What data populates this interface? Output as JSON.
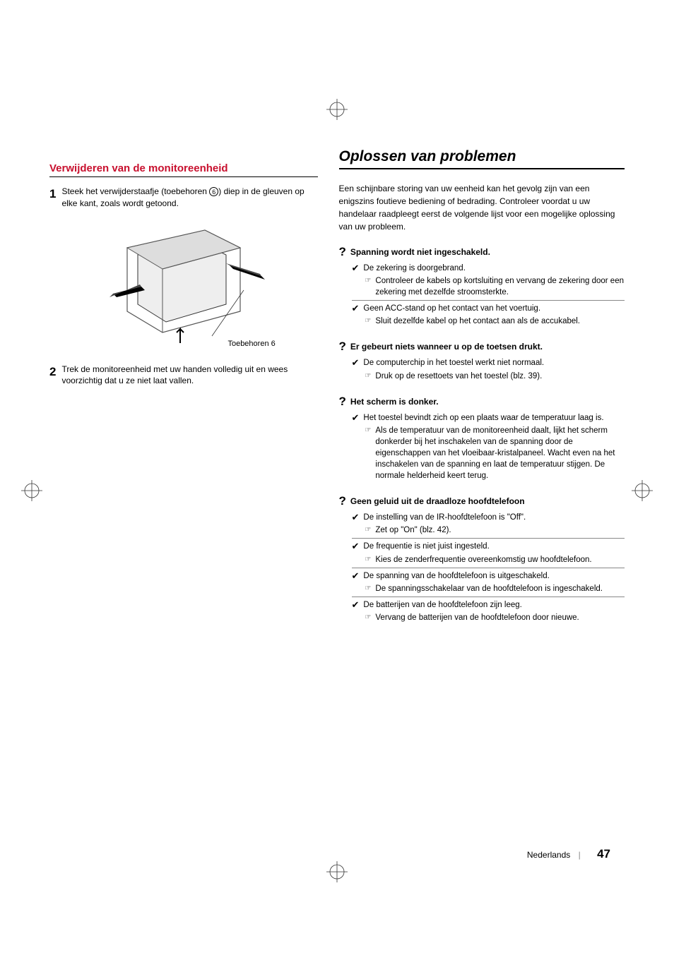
{
  "leftColumn": {
    "heading": "Verwijderen van de monitoreenheid",
    "steps": [
      {
        "num": "1",
        "text_before": "Steek het verwijderstaafje (toebehoren ",
        "circled": "6",
        "text_after": ") diep in de gleuven op elke kant, zoals wordt getoond."
      },
      {
        "num": "2",
        "text_before": "Trek de monitoreenheid met uw handen volledig uit en wees voorzichtig dat u ze niet laat vallen.",
        "circled": "",
        "text_after": ""
      }
    ],
    "illus_label_prefix": "Toebehoren ",
    "illus_label_num": "6"
  },
  "rightColumn": {
    "title": "Oplossen van problemen",
    "intro": "Een schijnbare storing van uw eenheid kan het gevolg zijn van een enigszins foutieve bediening of bedrading. Controleer voordat u uw handelaar raadpleegt eerst de volgende lijst voor een mogelijke oplossing van uw probleem.",
    "qa": [
      {
        "q": "Spanning wordt niet ingeschakeld.",
        "causes": [
          {
            "cause": "De zekering is doorgebrand.",
            "remedy": "Controleer de kabels op kortsluiting en vervang de zekering door een zekering met dezelfde stroomsterkte."
          },
          {
            "cause": "Geen ACC-stand op het contact van het voertuig.",
            "remedy": "Sluit dezelfde kabel op het contact aan als de accukabel."
          }
        ]
      },
      {
        "q": "Er gebeurt niets wanneer u op de toetsen drukt.",
        "causes": [
          {
            "cause": "De computerchip in het toestel werkt niet normaal.",
            "remedy": "Druk op de resettoets van het toestel (blz. 39)."
          }
        ]
      },
      {
        "q": "Het scherm is donker.",
        "causes": [
          {
            "cause": "Het toestel bevindt zich op een plaats waar de temperatuur laag is.",
            "remedy": "Als de temperatuur van de monitoreenheid daalt, lijkt het scherm donkerder bij het inschakelen van de spanning door de eigenschappen van het vloeibaar-kristalpaneel. Wacht even na het inschakelen van de spanning en laat de temperatuur stijgen. De normale helderheid keert terug."
          }
        ]
      },
      {
        "q": "Geen geluid uit de draadloze hoofdtelefoon",
        "causes": [
          {
            "cause": "De instelling van de IR-hoofdtelefoon is \"Off\".",
            "remedy": "Zet op \"On\" (blz. 42)."
          },
          {
            "cause": "De frequentie is niet juist ingesteld.",
            "remedy": "Kies de zenderfrequentie overeenkomstig uw hoofdtelefoon."
          },
          {
            "cause": "De spanning van de hoofdtelefoon is uitgeschakeld.",
            "remedy": "De spanningsschakelaar van de hoofdtelefoon is ingeschakeld."
          },
          {
            "cause": "De batterijen van de hoofdtelefoon zijn leeg.",
            "remedy": "Vervang de batterijen van de hoofdtelefoon door nieuwe."
          }
        ]
      }
    ]
  },
  "footer": {
    "lang": "Nederlands",
    "page": "47"
  }
}
